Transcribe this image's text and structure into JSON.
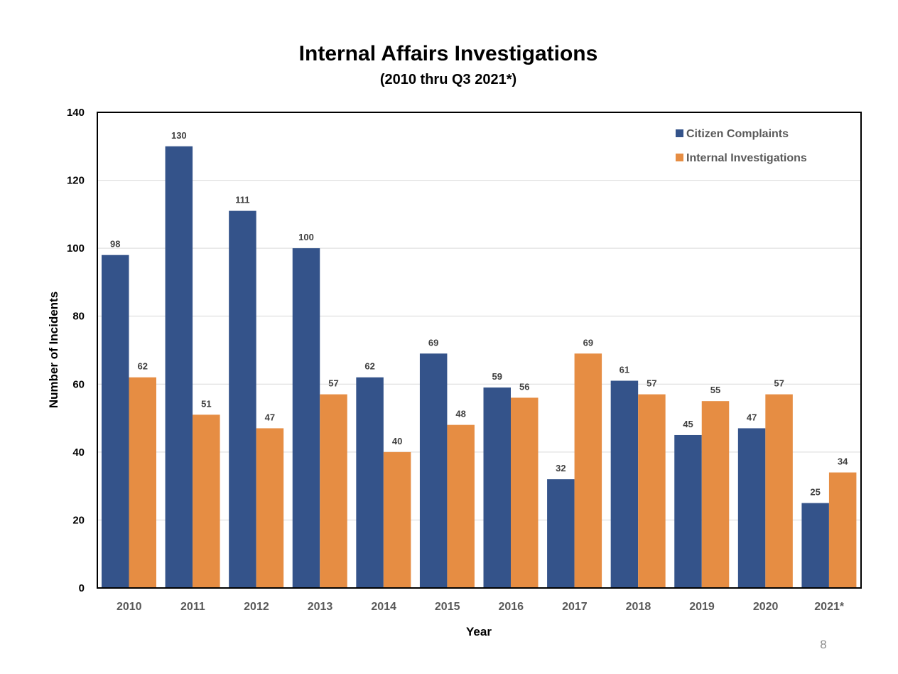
{
  "page_number": "8",
  "chart_data": {
    "type": "bar",
    "title": "Internal Affairs Investigations",
    "subtitle": "(2010 thru Q3 2021*)",
    "xlabel": "Year",
    "ylabel": "Number of Incidents",
    "ylim": [
      0,
      140
    ],
    "yticks": [
      0,
      20,
      40,
      60,
      80,
      100,
      120,
      140
    ],
    "grid": true,
    "legend_position": "top-right",
    "categories": [
      "2010",
      "2011",
      "2012",
      "2013",
      "2014",
      "2015",
      "2016",
      "2017",
      "2018",
      "2019",
      "2020",
      "2021*"
    ],
    "series": [
      {
        "name": "Citizen Complaints",
        "color": "#34538a",
        "values": [
          98,
          130,
          111,
          100,
          62,
          69,
          59,
          32,
          61,
          45,
          47,
          25
        ]
      },
      {
        "name": "Internal Investigations",
        "color": "#e68d43",
        "values": [
          62,
          51,
          47,
          57,
          40,
          48,
          56,
          69,
          57,
          55,
          57,
          34
        ]
      }
    ]
  }
}
